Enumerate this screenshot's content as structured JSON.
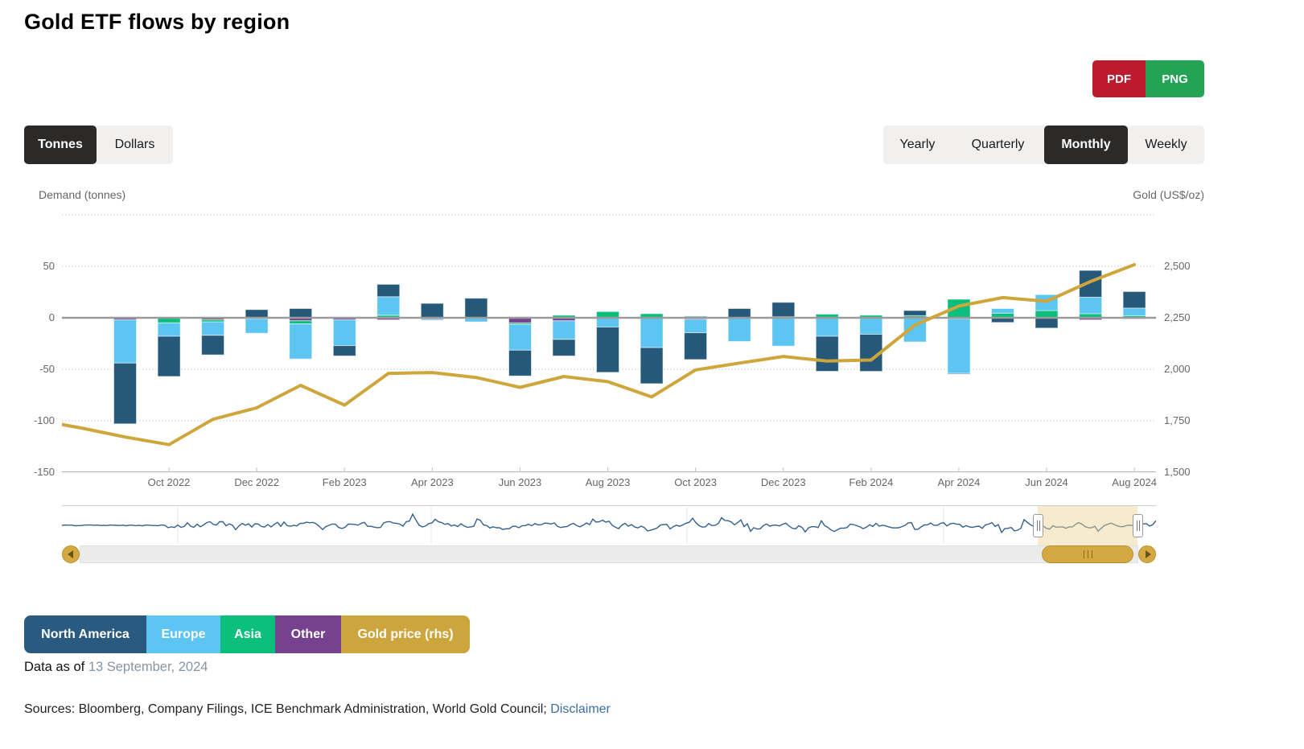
{
  "header": {
    "title": "Gold ETF flows by region"
  },
  "export": {
    "pdf_label": "PDF",
    "png_label": "PNG"
  },
  "unit_toggle": {
    "options": [
      "Tonnes",
      "Dollars"
    ],
    "selected": "Tonnes"
  },
  "period_toggle": {
    "options": [
      "Yearly",
      "Quarterly",
      "Monthly",
      "Weekly"
    ],
    "selected": "Monthly"
  },
  "legend": {
    "items": [
      {
        "label": "North America",
        "color": "#2a5a80"
      },
      {
        "label": "Europe",
        "color": "#5cc5f1"
      },
      {
        "label": "Asia",
        "color": "#0abf7c"
      },
      {
        "label": "Other",
        "color": "#76428f"
      },
      {
        "label": "Gold price (rhs)",
        "color": "#cda53d"
      }
    ]
  },
  "footer": {
    "data_as_of_label": "Data as of",
    "data_as_of_date": "13 September, 2024",
    "sources_text": "Sources: Bloomberg, Company Filings, ICE Benchmark Administration, World Gold Council; ",
    "disclaimer_label": "Disclaimer"
  },
  "chart_data": {
    "type": "bar",
    "subtype": "stacked-columns-with-line",
    "title": "Gold ETF flows by region",
    "left_axis": {
      "title": "Demand (tonnes)",
      "min": -150,
      "max": 100,
      "ticks": [
        50,
        0,
        -50,
        -100,
        -150
      ],
      "tick_labels": [
        "50",
        "0",
        "-50",
        "-100",
        "-150"
      ],
      "grid": "dotted"
    },
    "right_axis": {
      "title": "Gold (US$/oz)",
      "min": 1500,
      "max": 2750,
      "ticks": [
        2500,
        2250,
        2000,
        1750,
        1500
      ],
      "tick_labels": [
        "2,500",
        "2,250",
        "2,000",
        "1,750",
        "1,500"
      ]
    },
    "x_tick_labels": [
      "Oct 2022",
      "Dec 2022",
      "Feb 2023",
      "Apr 2023",
      "Jun 2023",
      "Aug 2023",
      "Oct 2023",
      "Dec 2023",
      "Feb 2024",
      "Apr 2024",
      "Jun 2024",
      "Aug 2024"
    ],
    "categories": [
      "Sep 2022",
      "Oct 2022",
      "Nov 2022",
      "Dec 2022",
      "Jan 2023",
      "Feb 2023",
      "Mar 2023",
      "Apr 2023",
      "May 2023",
      "Jun 2023",
      "Jul 2023",
      "Aug 2023",
      "Sep 2023",
      "Oct 2023",
      "Nov 2023",
      "Dec 2023",
      "Jan 2024",
      "Feb 2024",
      "Mar 2024",
      "Apr 2024",
      "May 2024",
      "Jun 2024",
      "Jul 2024",
      "Aug 2024"
    ],
    "series": [
      {
        "name": "North America",
        "type": "column",
        "color": "#265979",
        "values": [
          -59,
          -39,
          -19,
          8,
          9,
          -10,
          12,
          14,
          19,
          -25,
          -16,
          -44,
          -35,
          -26,
          9,
          14,
          -34,
          -36,
          5,
          -0.5,
          -4.5,
          -9.5,
          26,
          16
        ]
      },
      {
        "name": "Europe",
        "type": "column",
        "color": "#5cc5f1",
        "values": [
          -42,
          -13,
          -13,
          -14,
          -34,
          -25,
          18,
          -1,
          -4,
          -25,
          -18,
          -9,
          -29,
          -13,
          -23,
          -27,
          -18,
          -16,
          -23,
          -53,
          4.5,
          15.5,
          16,
          7.5
        ]
      },
      {
        "name": "Asia",
        "type": "column",
        "color": "#0abf7c",
        "values": [
          0,
          -5,
          -2,
          -1,
          -3,
          0,
          2.5,
          0,
          0,
          -1.5,
          2.5,
          6,
          4,
          1.5,
          0,
          1,
          3.5,
          2.5,
          2,
          18,
          4.5,
          7,
          4,
          2
        ]
      },
      {
        "name": "Other",
        "type": "column",
        "color": "#76428f",
        "values": [
          -2,
          0,
          -2,
          0,
          -3,
          -2,
          -2,
          -1.5,
          0,
          -5,
          -3,
          0,
          0,
          -1.5,
          0,
          -0.5,
          0,
          0,
          -0.5,
          -1,
          0,
          -0.5,
          -2,
          -1
        ]
      },
      {
        "name": "Gold price (rhs)",
        "type": "line",
        "axis": "right",
        "color": "#cfa63c",
        "x": [
          "Jul 2022",
          "Aug 2022",
          "Sep 2022",
          "Oct 2022",
          "Nov 2022",
          "Dec 2022",
          "Jan 2023",
          "Feb 2023",
          "Mar 2023",
          "Apr 2023",
          "May 2023",
          "Jun 2023",
          "Jul 2023",
          "Aug 2023",
          "Sep 2023",
          "Oct 2023",
          "Nov 2023",
          "Dec 2023",
          "Jan 2024",
          "Feb 2024",
          "Mar 2024",
          "Apr 2024",
          "May 2024",
          "Jun 2024",
          "Jul 2024",
          "Aug 2024"
        ],
        "values": [
          1753,
          1715,
          1671,
          1634,
          1757,
          1813,
          1922,
          1826,
          1980,
          1984,
          1960,
          1912,
          1965,
          1940,
          1866,
          1997,
          2030,
          2062,
          2040,
          2045,
          2215,
          2307,
          2348,
          2330,
          2426,
          2508
        ]
      }
    ],
    "zero_line_right_value": 2250,
    "navigator": {
      "selected_range": [
        "Jun 2024",
        "Sep 2024"
      ],
      "line_color": "#33618e"
    }
  }
}
